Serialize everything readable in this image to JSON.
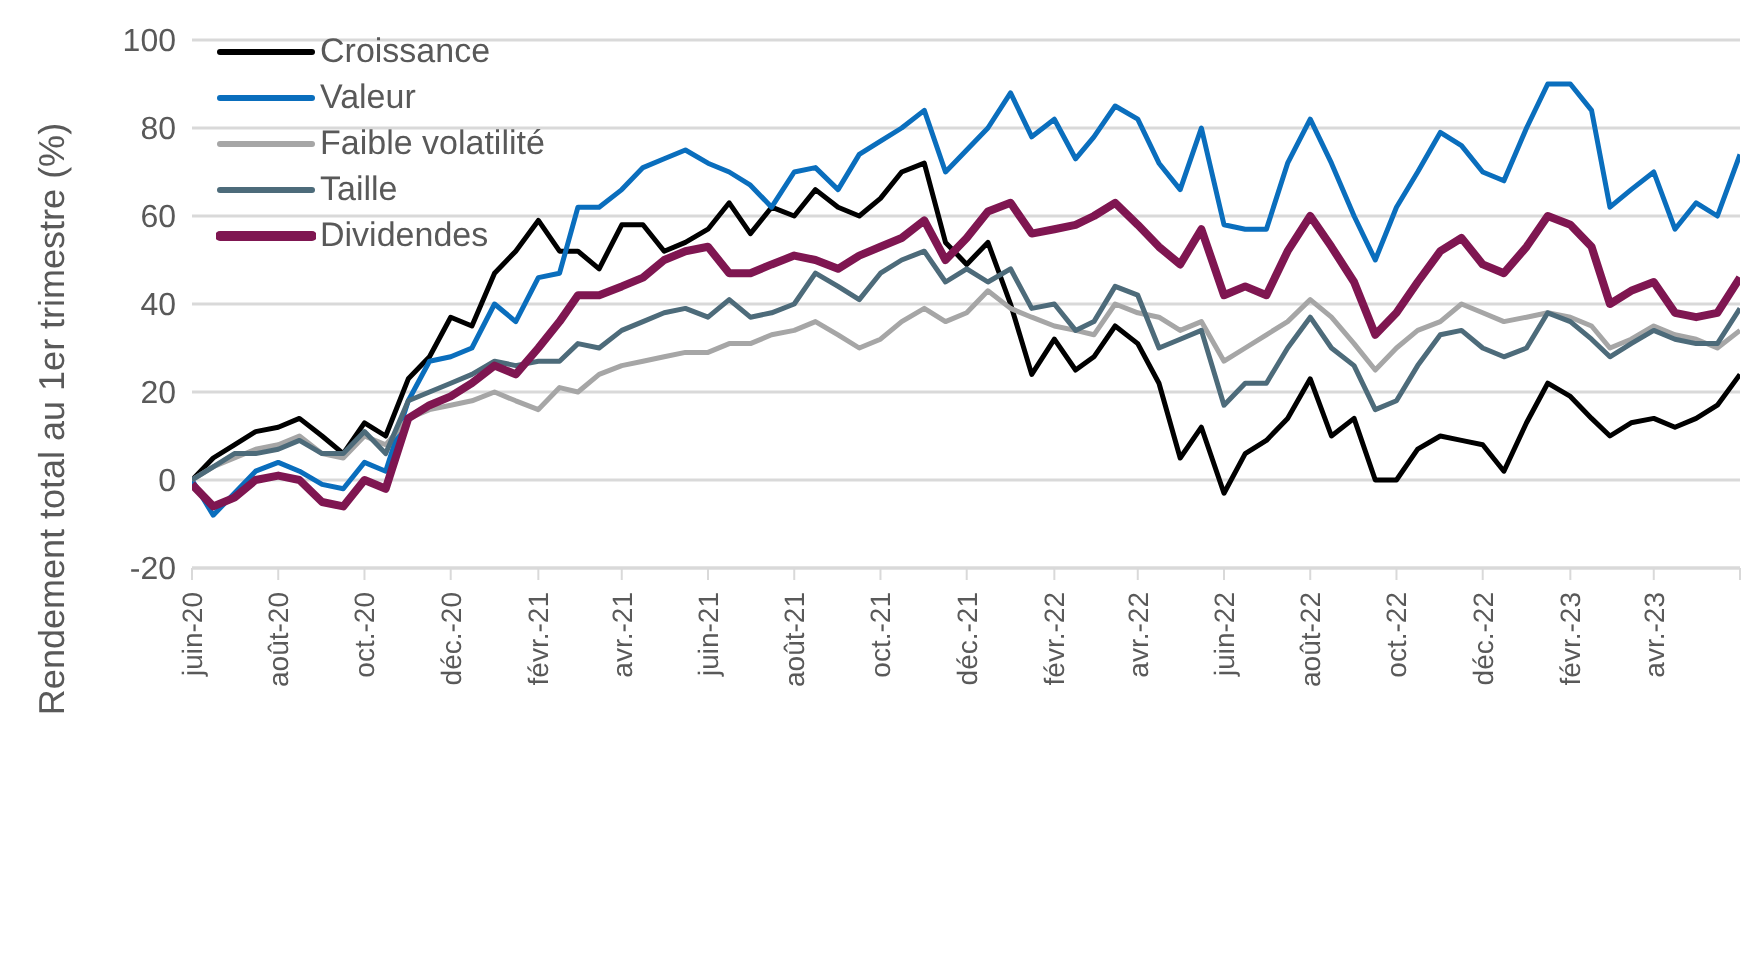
{
  "chart_data": {
    "type": "line",
    "ylabel": "Rendement total au 1er trimestre (%)",
    "x": [
      "2020-06-01",
      "2020-06-16",
      "2020-07-01",
      "2020-07-16",
      "2020-08-01",
      "2020-08-16",
      "2020-09-01",
      "2020-09-16",
      "2020-10-01",
      "2020-10-16",
      "2020-11-01",
      "2020-11-16",
      "2020-12-01",
      "2020-12-16",
      "2021-01-01",
      "2021-01-16",
      "2021-02-01",
      "2021-02-16",
      "2021-03-01",
      "2021-03-16",
      "2021-04-01",
      "2021-04-16",
      "2021-05-01",
      "2021-05-16",
      "2021-06-01",
      "2021-06-16",
      "2021-07-01",
      "2021-07-16",
      "2021-08-01",
      "2021-08-16",
      "2021-09-01",
      "2021-09-16",
      "2021-10-01",
      "2021-10-16",
      "2021-11-01",
      "2021-11-16",
      "2021-12-01",
      "2021-12-16",
      "2022-01-01",
      "2022-01-16",
      "2022-02-01",
      "2022-02-16",
      "2022-03-01",
      "2022-03-16",
      "2022-04-01",
      "2022-04-16",
      "2022-05-01",
      "2022-05-16",
      "2022-06-01",
      "2022-06-16",
      "2022-07-01",
      "2022-07-16",
      "2022-08-01",
      "2022-08-16",
      "2022-09-01",
      "2022-09-16",
      "2022-10-01",
      "2022-10-16",
      "2022-11-01",
      "2022-11-16",
      "2022-12-01",
      "2022-12-16",
      "2023-01-01",
      "2023-01-16",
      "2023-02-01",
      "2023-02-16",
      "2023-03-01",
      "2023-03-16",
      "2023-04-01",
      "2023-04-16",
      "2023-05-01",
      "2023-05-16",
      "2023-06-01"
    ],
    "series": [
      {
        "name": "Croissance",
        "color": "#000000",
        "values": [
          0,
          5,
          8,
          11,
          12,
          14,
          10,
          6,
          13,
          10,
          23,
          28,
          37,
          35,
          47,
          52,
          59,
          52,
          52,
          48,
          58,
          58,
          52,
          54,
          57,
          63,
          56,
          62,
          60,
          66,
          62,
          60,
          64,
          70,
          72,
          54,
          49,
          54,
          40,
          24,
          32,
          25,
          28,
          35,
          31,
          22,
          5,
          12,
          -3,
          6,
          9,
          14,
          23,
          10,
          14,
          0,
          0,
          7,
          10,
          9,
          8,
          2,
          13,
          22,
          19,
          14,
          10,
          13,
          14,
          12,
          14,
          17,
          24
        ]
      },
      {
        "name": "Valeur",
        "color": "#0a6ebd",
        "values": [
          0,
          -8,
          -3,
          2,
          4,
          2,
          -1,
          -2,
          4,
          2,
          18,
          27,
          28,
          30,
          40,
          36,
          46,
          47,
          62,
          62,
          66,
          71,
          73,
          75,
          72,
          70,
          67,
          62,
          70,
          71,
          66,
          74,
          77,
          80,
          84,
          70,
          75,
          80,
          88,
          78,
          82,
          73,
          78,
          85,
          82,
          72,
          66,
          80,
          58,
          57,
          57,
          72,
          82,
          72,
          60,
          50,
          62,
          70,
          79,
          76,
          70,
          68,
          80,
          90,
          90,
          84,
          62,
          66,
          70,
          57,
          63,
          60,
          74
        ]
      },
      {
        "name": "Faible volatilité",
        "color": "#a6a6a6",
        "values": [
          0,
          3,
          5,
          7,
          8,
          10,
          6,
          5,
          10,
          8,
          14,
          16,
          17,
          18,
          20,
          18,
          16,
          21,
          20,
          24,
          26,
          27,
          28,
          29,
          29,
          31,
          31,
          33,
          34,
          36,
          33,
          30,
          32,
          36,
          39,
          36,
          38,
          43,
          39,
          37,
          35,
          34,
          33,
          40,
          38,
          37,
          34,
          36,
          27,
          30,
          33,
          36,
          41,
          37,
          31,
          25,
          30,
          34,
          36,
          40,
          38,
          36,
          37,
          38,
          37,
          35,
          30,
          32,
          35,
          33,
          32,
          30,
          34
        ]
      },
      {
        "name": "Taille",
        "color": "#4d6b7a",
        "values": [
          0,
          3,
          6,
          6,
          7,
          9,
          6,
          6,
          11,
          6,
          18,
          20,
          22,
          24,
          27,
          26,
          27,
          27,
          31,
          30,
          34,
          36,
          38,
          39,
          37,
          41,
          37,
          38,
          40,
          47,
          44,
          41,
          47,
          50,
          52,
          45,
          48,
          45,
          48,
          39,
          40,
          34,
          36,
          44,
          42,
          30,
          32,
          34,
          17,
          22,
          22,
          30,
          37,
          30,
          26,
          16,
          18,
          26,
          33,
          34,
          30,
          28,
          30,
          38,
          36,
          32,
          28,
          31,
          34,
          32,
          31,
          31,
          39
        ]
      },
      {
        "name": "Dividendes",
        "color": "#7f1651",
        "values": [
          -1,
          -6,
          -4,
          0,
          1,
          0,
          -5,
          -6,
          0,
          -2,
          14,
          17,
          19,
          22,
          26,
          24,
          30,
          36,
          42,
          42,
          44,
          46,
          50,
          52,
          53,
          47,
          47,
          49,
          51,
          50,
          48,
          51,
          53,
          55,
          59,
          50,
          55,
          61,
          63,
          56,
          57,
          58,
          60,
          63,
          58,
          53,
          49,
          57,
          42,
          44,
          42,
          52,
          60,
          53,
          45,
          33,
          38,
          45,
          52,
          55,
          49,
          47,
          53,
          60,
          58,
          53,
          40,
          43,
          45,
          38,
          37,
          38,
          46
        ]
      }
    ],
    "xlim": [
      "2020-06-01",
      "2023-06-01"
    ],
    "xticks": [
      {
        "value": "2020-06-01",
        "label": "juin-20"
      },
      {
        "value": "2020-08-01",
        "label": "août-20"
      },
      {
        "value": "2020-10-01",
        "label": "oct.-20"
      },
      {
        "value": "2020-12-01",
        "label": "déc.-20"
      },
      {
        "value": "2021-02-01",
        "label": "févr.-21"
      },
      {
        "value": "2021-04-01",
        "label": "avr.-21"
      },
      {
        "value": "2021-06-01",
        "label": "juin-21"
      },
      {
        "value": "2021-08-01",
        "label": "août-21"
      },
      {
        "value": "2021-10-01",
        "label": "oct.-21"
      },
      {
        "value": "2021-12-01",
        "label": "déc.-21"
      },
      {
        "value": "2022-02-01",
        "label": "févr.-22"
      },
      {
        "value": "2022-04-01",
        "label": "avr.-22"
      },
      {
        "value": "2022-06-01",
        "label": "juin-22"
      },
      {
        "value": "2022-08-01",
        "label": "août-22"
      },
      {
        "value": "2022-10-01",
        "label": "oct.-22"
      },
      {
        "value": "2022-12-01",
        "label": "déc.-22"
      },
      {
        "value": "2023-02-01",
        "label": "févr.-23"
      },
      {
        "value": "2023-04-01",
        "label": "avr.-23"
      },
      {
        "value": "2023-06-01",
        "label": null
      }
    ],
    "ylim": [
      -20,
      100
    ],
    "yticks": [
      -20,
      0,
      20,
      40,
      60,
      80,
      100
    ],
    "grid": "y",
    "legend": "top left",
    "marker": "none",
    "line_style": "solid"
  }
}
